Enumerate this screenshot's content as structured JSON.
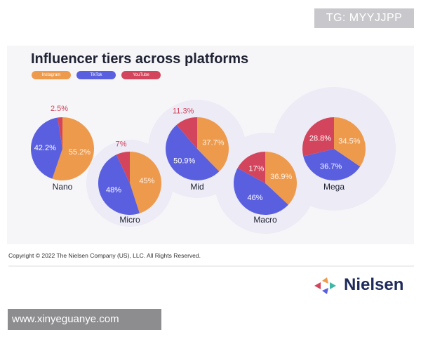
{
  "watermarks": {
    "top": "TG: MYYJJPP",
    "bottom": "www.xinyeguanye.com"
  },
  "copyright": "Copyright © 2022 The Nielsen Company (US), LLC. All Rights Reserved.",
  "brand": {
    "name": "Nielsen"
  },
  "colors": {
    "instagram": "#ee9a4d",
    "tiktok": "#5a5fe0",
    "youtube": "#d2455c"
  },
  "chart_data": {
    "type": "pie",
    "title": "Influencer tiers across platforms",
    "legend": [
      "Instagram",
      "TikTok",
      "YouTube"
    ],
    "legend_placement": "top-left",
    "charts": [
      {
        "label": "Nano",
        "values": [
          55.2,
          42.2,
          2.5
        ],
        "value_labels": [
          "55.2%",
          "42.2%",
          "2.5%"
        ]
      },
      {
        "label": "Micro",
        "values": [
          45,
          48,
          7
        ],
        "value_labels": [
          "45%",
          "48%",
          "7%"
        ]
      },
      {
        "label": "Mid",
        "values": [
          37.7,
          50.9,
          11.3
        ],
        "value_labels": [
          "37.7%",
          "50.9%",
          "11.3%"
        ]
      },
      {
        "label": "Macro",
        "values": [
          36.9,
          46,
          17
        ],
        "value_labels": [
          "36.9%",
          "46%",
          "17%"
        ]
      },
      {
        "label": "Mega",
        "values": [
          34.5,
          36.7,
          28.8
        ],
        "value_labels": [
          "34.5%",
          "36.7%",
          "28.8%"
        ]
      }
    ]
  }
}
